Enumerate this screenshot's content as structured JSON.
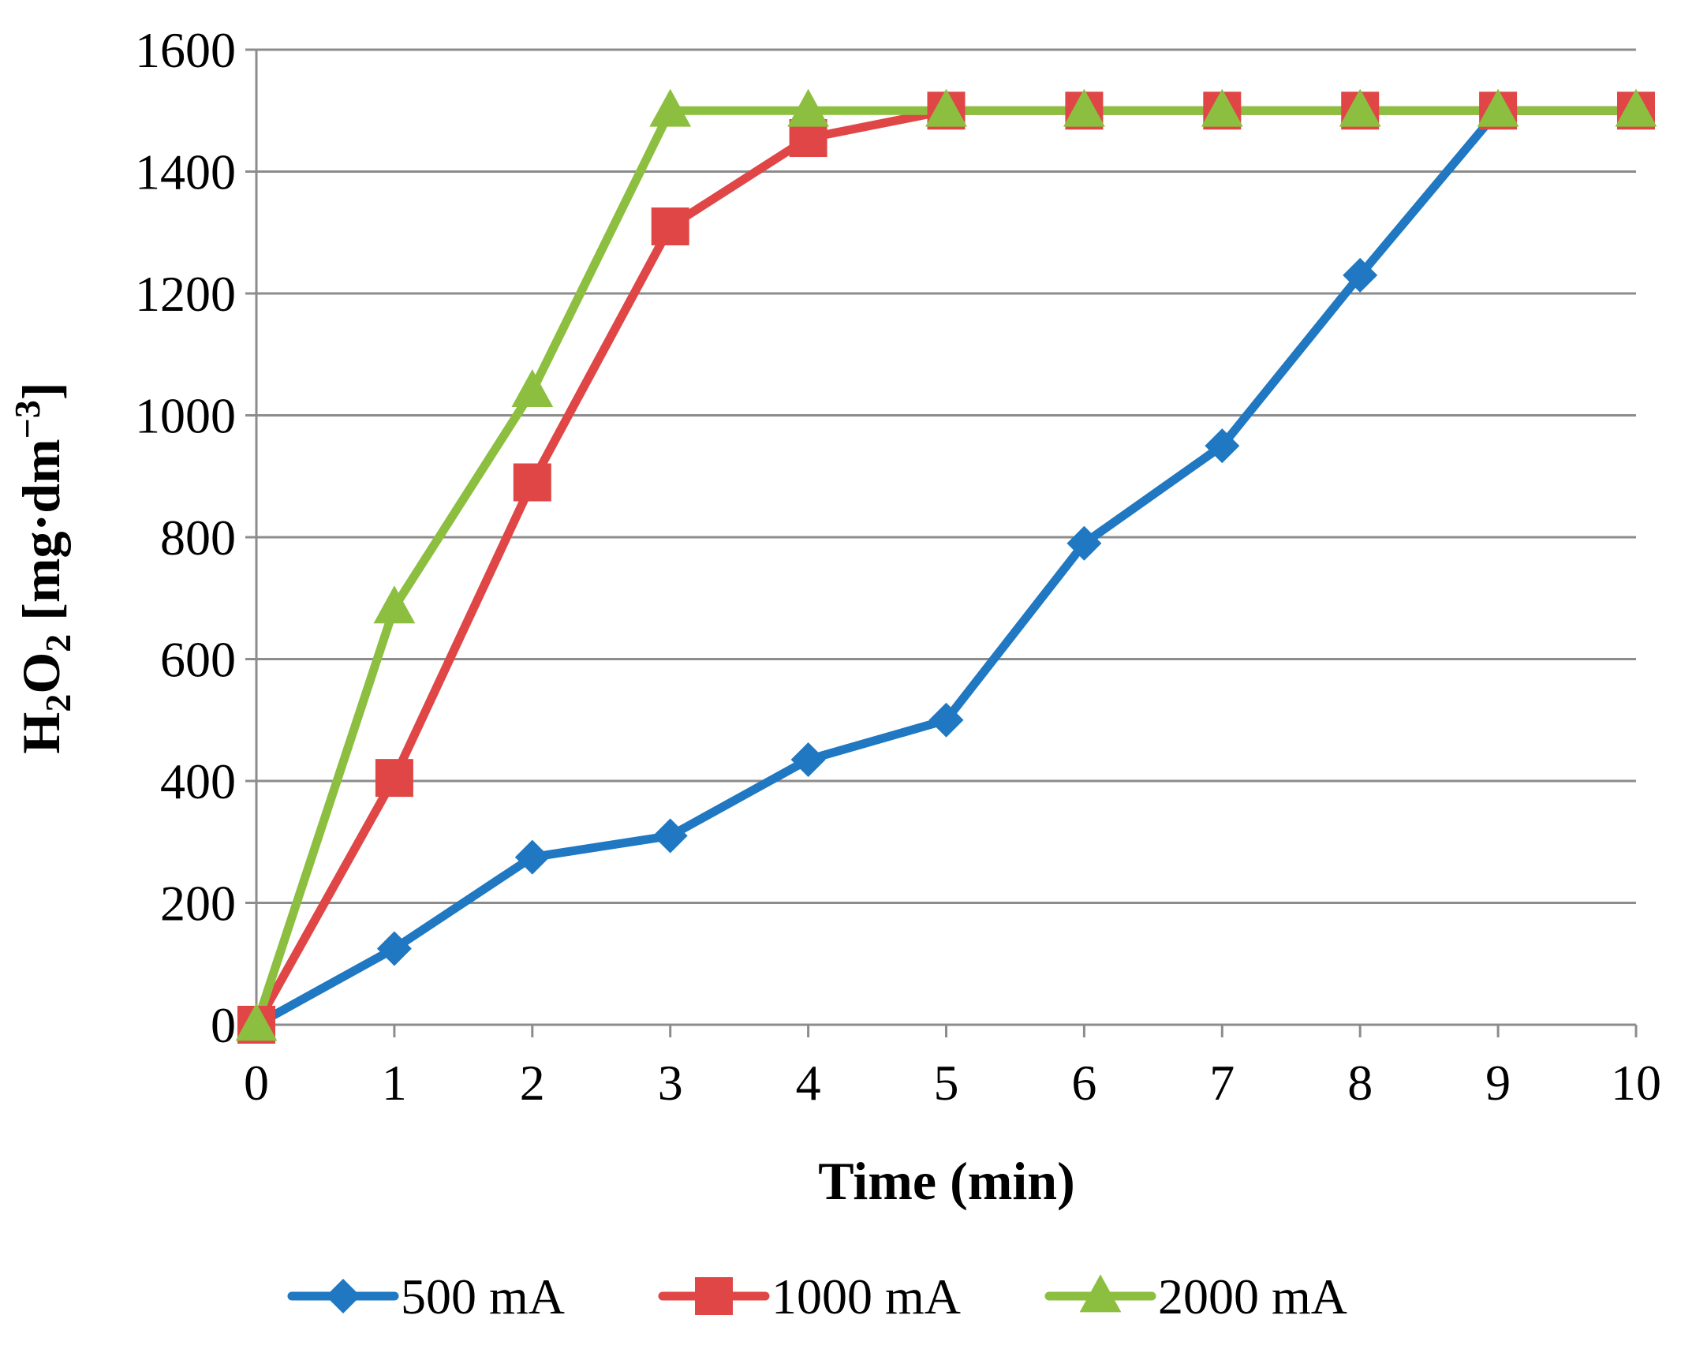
{
  "chart_data": {
    "type": "line",
    "title": "",
    "xlabel": "Time (min)",
    "ylabel": {
      "main": "H",
      "sub1": "2",
      "mid": "O",
      "sub2": "2",
      "unit_open": " [mg·dm",
      "unit_sup": "−3",
      "unit_close": "]"
    },
    "x": [
      0,
      1,
      2,
      3,
      4,
      5,
      6,
      7,
      8,
      9,
      10
    ],
    "xlim": [
      0,
      10
    ],
    "ylim": [
      0,
      1600
    ],
    "y_ticks": [
      0,
      200,
      400,
      600,
      800,
      1000,
      1200,
      1400,
      1600
    ],
    "x_ticks": [
      0,
      1,
      2,
      3,
      4,
      5,
      6,
      7,
      8,
      9,
      10
    ],
    "grid": "horizontal",
    "legend_position": "bottom",
    "series": [
      {
        "name": "500 mA",
        "color": "#1f78c1",
        "marker": "diamond",
        "values": [
          0,
          125,
          275,
          310,
          435,
          500,
          790,
          950,
          1230,
          1500,
          1500
        ]
      },
      {
        "name": "1000 mA",
        "color": "#e04646",
        "marker": "square",
        "values": [
          0,
          405,
          890,
          1310,
          1455,
          1500,
          1500,
          1500,
          1500,
          1500,
          1500
        ]
      },
      {
        "name": "2000 mA",
        "color": "#8cbf3f",
        "marker": "triangle",
        "values": [
          0,
          685,
          1040,
          1500,
          1500,
          1500,
          1500,
          1500,
          1500,
          1500,
          1500
        ]
      }
    ]
  }
}
